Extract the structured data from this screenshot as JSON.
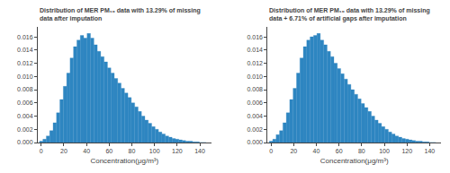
{
  "chart_data": [
    {
      "type": "bar",
      "title": "Distribution of MER PM₁₀ data with 13.29% of missing\ndata after imputation",
      "x_label": "Concentration(μg/m³)",
      "x": [
        0,
        3,
        6,
        9,
        12,
        15,
        18,
        21,
        24,
        27,
        30,
        33,
        36,
        39,
        42,
        45,
        48,
        51,
        54,
        57,
        60,
        63,
        66,
        69,
        72,
        75,
        78,
        81,
        84,
        87,
        90,
        93,
        96,
        99,
        102,
        105,
        108,
        111,
        114,
        117,
        120,
        123,
        126,
        129,
        132,
        135,
        138,
        141,
        144
      ],
      "values": [
        0.0002,
        0.0005,
        0.001,
        0.0018,
        0.003,
        0.0045,
        0.0065,
        0.0085,
        0.0105,
        0.0128,
        0.0145,
        0.0155,
        0.0162,
        0.0158,
        0.0165,
        0.0158,
        0.0148,
        0.0138,
        0.013,
        0.0122,
        0.0113,
        0.0105,
        0.0097,
        0.009,
        0.0082,
        0.0075,
        0.0068,
        0.006,
        0.0054,
        0.0047,
        0.004,
        0.0034,
        0.0029,
        0.0024,
        0.002,
        0.0016,
        0.0013,
        0.001,
        0.0008,
        0.0006,
        0.0005,
        0.0004,
        0.0003,
        0.0002,
        0.0002,
        0.0001,
        0.0001,
        0.0,
        0.0
      ],
      "color": "#2e86c1",
      "xlim": [
        -3,
        150
      ],
      "xticks": [
        0,
        20,
        40,
        60,
        80,
        100,
        120,
        140
      ],
      "ylim": [
        0,
        0.0175
      ],
      "yticks": [
        {
          "value": 0,
          "label": "0.000"
        },
        0.002,
        0.004,
        0.006,
        0.008,
        {
          "value": 0.01,
          "label": "0.010"
        },
        0.012,
        0.014,
        0.016
      ],
      "grid": false
    },
    {
      "type": "bar",
      "title": "Distribution of MER PM₁₀ data with 13.29% of missing\ndata + 6.71% of artificial gaps after imputation",
      "x_label": "Concentration(μg/m³)",
      "x": [
        0,
        3,
        6,
        9,
        12,
        15,
        18,
        21,
        24,
        27,
        30,
        33,
        36,
        39,
        42,
        45,
        48,
        51,
        54,
        57,
        60,
        63,
        66,
        69,
        72,
        75,
        78,
        81,
        84,
        87,
        90,
        93,
        96,
        99,
        102,
        105,
        108,
        111,
        114,
        117,
        120,
        123,
        126,
        129,
        132,
        135,
        138,
        141,
        144
      ],
      "values": [
        0.0002,
        0.0005,
        0.0012,
        0.0018,
        0.003,
        0.0045,
        0.0065,
        0.0082,
        0.0105,
        0.0128,
        0.0145,
        0.0155,
        0.016,
        0.0162,
        0.0165,
        0.0155,
        0.0148,
        0.0138,
        0.013,
        0.012,
        0.0112,
        0.0104,
        0.0096,
        0.0088,
        0.008,
        0.0073,
        0.0066,
        0.0059,
        0.0053,
        0.0047,
        0.004,
        0.0034,
        0.0029,
        0.0024,
        0.002,
        0.0016,
        0.0013,
        0.001,
        0.0008,
        0.0006,
        0.0005,
        0.0004,
        0.0003,
        0.0002,
        0.0002,
        0.0001,
        0.0001,
        0.0,
        0.0
      ],
      "color": "#2e86c1",
      "xlim": [
        -3,
        150
      ],
      "xticks": [
        0,
        20,
        40,
        60,
        80,
        100,
        120,
        140
      ],
      "ylim": [
        0,
        0.0175
      ],
      "yticks": [
        {
          "value": 0,
          "label": "0.000"
        },
        0.002,
        0.004,
        0.006,
        0.008,
        {
          "value": 0.01,
          "label": "0.010"
        },
        0.012,
        0.014,
        0.016
      ],
      "grid": false
    }
  ]
}
